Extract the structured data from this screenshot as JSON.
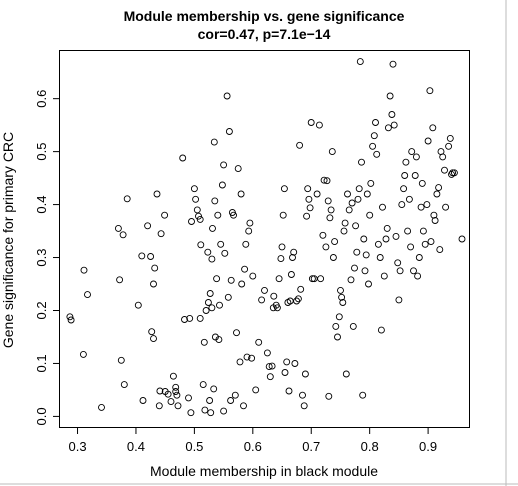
{
  "chart_data": {
    "type": "scatter",
    "title": "Module membership vs. gene significance",
    "subtitle": "cor=0.47, p=7.1e−14",
    "xlabel": "Module membership in black module",
    "ylabel": "Gene significance for primary CRC",
    "xlim": [
      0.27,
      0.97
    ],
    "ylim": [
      -0.02,
      0.69
    ],
    "xticks": [
      0.3,
      0.4,
      0.5,
      0.6,
      0.7,
      0.8,
      0.9
    ],
    "yticks": [
      0.0,
      0.1,
      0.2,
      0.3,
      0.4,
      0.5,
      0.6
    ],
    "xtick_labels": [
      "0.3",
      "0.4",
      "0.5",
      "0.6",
      "0.7",
      "0.8",
      "0.9"
    ],
    "ytick_labels": [
      "0.0",
      "0.1",
      "0.2",
      "0.3",
      "0.4",
      "0.5",
      "0.6"
    ],
    "grid": false,
    "legend": "none",
    "marker": "open-circle",
    "points": [
      [
        0.287,
        0.188
      ],
      [
        0.289,
        0.182
      ],
      [
        0.31,
        0.117
      ],
      [
        0.311,
        0.276
      ],
      [
        0.317,
        0.23
      ],
      [
        0.341,
        0.017
      ],
      [
        0.37,
        0.355
      ],
      [
        0.372,
        0.258
      ],
      [
        0.375,
        0.106
      ],
      [
        0.378,
        0.343
      ],
      [
        0.38,
        0.06
      ],
      [
        0.385,
        0.411
      ],
      [
        0.404,
        0.21
      ],
      [
        0.41,
        0.303
      ],
      [
        0.412,
        0.03
      ],
      [
        0.42,
        0.36
      ],
      [
        0.425,
        0.302
      ],
      [
        0.427,
        0.16
      ],
      [
        0.43,
        0.147
      ],
      [
        0.43,
        0.25
      ],
      [
        0.432,
        0.28
      ],
      [
        0.436,
        0.42
      ],
      [
        0.44,
        0.02
      ],
      [
        0.441,
        0.048
      ],
      [
        0.443,
        0.345
      ],
      [
        0.449,
        0.38
      ],
      [
        0.45,
        0.047
      ],
      [
        0.455,
        0.042
      ],
      [
        0.46,
        0.028
      ],
      [
        0.464,
        0.076
      ],
      [
        0.468,
        0.055
      ],
      [
        0.468,
        0.047
      ],
      [
        0.47,
        0.04
      ],
      [
        0.472,
        0.02
      ],
      [
        0.48,
        0.488
      ],
      [
        0.483,
        0.183
      ],
      [
        0.49,
        0.035
      ],
      [
        0.492,
        0.185
      ],
      [
        0.494,
        0.007
      ],
      [
        0.495,
        0.368
      ],
      [
        0.5,
        0.43
      ],
      [
        0.502,
        0.41
      ],
      [
        0.505,
        0.39
      ],
      [
        0.507,
        0.378
      ],
      [
        0.51,
        0.372
      ],
      [
        0.51,
        0.185
      ],
      [
        0.511,
        0.324
      ],
      [
        0.515,
        0.06
      ],
      [
        0.517,
        0.14
      ],
      [
        0.518,
        0.012
      ],
      [
        0.52,
        0.2
      ],
      [
        0.523,
        0.31
      ],
      [
        0.524,
        0.215
      ],
      [
        0.526,
        0.03
      ],
      [
        0.527,
        0.232
      ],
      [
        0.528,
        0.007
      ],
      [
        0.53,
        0.297
      ],
      [
        0.53,
        0.205
      ],
      [
        0.531,
        0.355
      ],
      [
        0.533,
        0.052
      ],
      [
        0.534,
        0.518
      ],
      [
        0.535,
        0.407
      ],
      [
        0.536,
        0.15
      ],
      [
        0.538,
        0.26
      ],
      [
        0.54,
        0.38
      ],
      [
        0.542,
        0.145
      ],
      [
        0.543,
        0.21
      ],
      [
        0.545,
        0.325
      ],
      [
        0.548,
        0.437
      ],
      [
        0.55,
        0.475
      ],
      [
        0.55,
        0.01
      ],
      [
        0.552,
        0.308
      ],
      [
        0.556,
        0.605
      ],
      [
        0.558,
        0.225
      ],
      [
        0.56,
        0.538
      ],
      [
        0.562,
        0.03
      ],
      [
        0.563,
        0.257
      ],
      [
        0.565,
        0.385
      ],
      [
        0.567,
        0.38
      ],
      [
        0.57,
        0.04
      ],
      [
        0.572,
        0.158
      ],
      [
        0.575,
        0.468
      ],
      [
        0.578,
        0.103
      ],
      [
        0.58,
        0.42
      ],
      [
        0.581,
        0.25
      ],
      [
        0.584,
        0.02
      ],
      [
        0.586,
        0.278
      ],
      [
        0.588,
        0.325
      ],
      [
        0.59,
        0.112
      ],
      [
        0.593,
        0.35
      ],
      [
        0.595,
        0.365
      ],
      [
        0.598,
        0.11
      ],
      [
        0.6,
        0.265
      ],
      [
        0.605,
        0.05
      ],
      [
        0.61,
        0.14
      ],
      [
        0.615,
        0.22
      ],
      [
        0.62,
        0.238
      ],
      [
        0.625,
        0.12
      ],
      [
        0.628,
        0.094
      ],
      [
        0.63,
        0.075
      ],
      [
        0.633,
        0.095
      ],
      [
        0.635,
        0.205
      ],
      [
        0.636,
        0.227
      ],
      [
        0.64,
        0.21
      ],
      [
        0.642,
        0.205
      ],
      [
        0.645,
        0.26
      ],
      [
        0.648,
        0.298
      ],
      [
        0.65,
        0.32
      ],
      [
        0.652,
        0.38
      ],
      [
        0.654,
        0.43
      ],
      [
        0.655,
        0.083
      ],
      [
        0.658,
        0.103
      ],
      [
        0.66,
        0.215
      ],
      [
        0.662,
        0.048
      ],
      [
        0.664,
        0.218
      ],
      [
        0.666,
        0.268
      ],
      [
        0.668,
        0.3
      ],
      [
        0.67,
        0.31
      ],
      [
        0.672,
        0.1
      ],
      [
        0.675,
        0.218
      ],
      [
        0.678,
        0.222
      ],
      [
        0.68,
        0.512
      ],
      [
        0.682,
        0.24
      ],
      [
        0.685,
        0.04
      ],
      [
        0.688,
        0.02
      ],
      [
        0.69,
        0.08
      ],
      [
        0.692,
        0.378
      ],
      [
        0.694,
        0.43
      ],
      [
        0.696,
        0.41
      ],
      [
        0.698,
        0.394
      ],
      [
        0.7,
        0.555
      ],
      [
        0.702,
        0.26
      ],
      [
        0.705,
        0.26
      ],
      [
        0.71,
        0.42
      ],
      [
        0.714,
        0.55
      ],
      [
        0.716,
        0.26
      ],
      [
        0.72,
        0.342
      ],
      [
        0.722,
        0.446
      ],
      [
        0.725,
        0.32
      ],
      [
        0.727,
        0.445
      ],
      [
        0.729,
        0.407
      ],
      [
        0.73,
        0.038
      ],
      [
        0.732,
        0.375
      ],
      [
        0.734,
        0.39
      ],
      [
        0.736,
        0.5
      ],
      [
        0.738,
        0.3
      ],
      [
        0.74,
        0.33
      ],
      [
        0.742,
        0.17
      ],
      [
        0.745,
        0.15
      ],
      [
        0.748,
        0.188
      ],
      [
        0.75,
        0.238
      ],
      [
        0.752,
        0.225
      ],
      [
        0.754,
        0.215
      ],
      [
        0.756,
        0.35
      ],
      [
        0.758,
        0.365
      ],
      [
        0.76,
        0.08
      ],
      [
        0.762,
        0.42
      ],
      [
        0.765,
        0.39
      ],
      [
        0.768,
        0.258
      ],
      [
        0.77,
        0.403
      ],
      [
        0.772,
        0.17
      ],
      [
        0.774,
        0.28
      ],
      [
        0.776,
        0.36
      ],
      [
        0.778,
        0.31
      ],
      [
        0.78,
        0.41
      ],
      [
        0.782,
        0.43
      ],
      [
        0.784,
        0.67
      ],
      [
        0.786,
        0.48
      ],
      [
        0.788,
        0.04
      ],
      [
        0.79,
        0.335
      ],
      [
        0.792,
        0.275
      ],
      [
        0.794,
        0.305
      ],
      [
        0.796,
        0.42
      ],
      [
        0.798,
        0.25
      ],
      [
        0.8,
        0.38
      ],
      [
        0.802,
        0.44
      ],
      [
        0.805,
        0.51
      ],
      [
        0.808,
        0.53
      ],
      [
        0.81,
        0.555
      ],
      [
        0.812,
        0.495
      ],
      [
        0.815,
        0.325
      ],
      [
        0.818,
        0.3
      ],
      [
        0.82,
        0.163
      ],
      [
        0.822,
        0.395
      ],
      [
        0.825,
        0.265
      ],
      [
        0.828,
        0.335
      ],
      [
        0.83,
        0.355
      ],
      [
        0.832,
        0.545
      ],
      [
        0.835,
        0.605
      ],
      [
        0.838,
        0.57
      ],
      [
        0.84,
        0.665
      ],
      [
        0.842,
        0.55
      ],
      [
        0.845,
        0.34
      ],
      [
        0.848,
        0.29
      ],
      [
        0.85,
        0.22
      ],
      [
        0.852,
        0.275
      ],
      [
        0.855,
        0.4
      ],
      [
        0.858,
        0.43
      ],
      [
        0.86,
        0.455
      ],
      [
        0.862,
        0.48
      ],
      [
        0.865,
        0.35
      ],
      [
        0.868,
        0.41
      ],
      [
        0.87,
        0.32
      ],
      [
        0.872,
        0.5
      ],
      [
        0.875,
        0.275
      ],
      [
        0.878,
        0.455
      ],
      [
        0.88,
        0.49
      ],
      [
        0.882,
        0.265
      ],
      [
        0.885,
        0.3
      ],
      [
        0.888,
        0.395
      ],
      [
        0.89,
        0.44
      ],
      [
        0.892,
        0.35
      ],
      [
        0.895,
        0.325
      ],
      [
        0.898,
        0.4
      ],
      [
        0.9,
        0.52
      ],
      [
        0.903,
        0.615
      ],
      [
        0.905,
        0.33
      ],
      [
        0.908,
        0.545
      ],
      [
        0.91,
        0.38
      ],
      [
        0.912,
        0.37
      ],
      [
        0.915,
        0.42
      ],
      [
        0.918,
        0.432
      ],
      [
        0.92,
        0.315
      ],
      [
        0.922,
        0.5
      ],
      [
        0.925,
        0.49
      ],
      [
        0.928,
        0.465
      ],
      [
        0.93,
        0.395
      ],
      [
        0.935,
        0.51
      ],
      [
        0.938,
        0.525
      ],
      [
        0.94,
        0.457
      ],
      [
        0.942,
        0.46
      ],
      [
        0.945,
        0.46
      ],
      [
        0.958,
        0.335
      ]
    ]
  }
}
